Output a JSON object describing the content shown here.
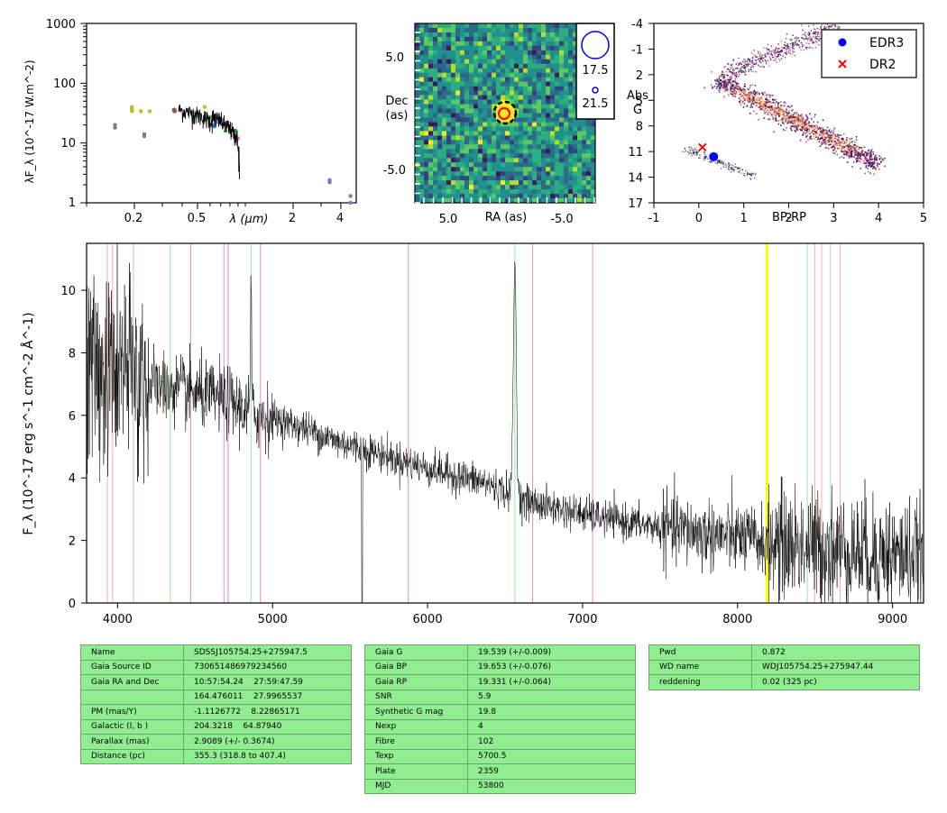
{
  "colors": {
    "sed_points": [
      "#7f7f7f",
      "#bcbd22",
      "#8c564b",
      "#9467bd",
      "#17becf",
      "#e377c2",
      "#2ca02c",
      "#1f77b4"
    ],
    "table_bg": "#90ee90",
    "edr3": "#0000ff",
    "dr2": "#ff0000",
    "cmd_cmap": [
      "#1b0b3c",
      "#5b1a6e",
      "#b5367a",
      "#f26a3d",
      "#fcae52",
      "#fdf6b6"
    ],
    "spectrum": "#000000",
    "line_pink": "#ffaaaa",
    "line_green": "#90ee90",
    "line_violet": "#dd88dd",
    "line_yellow": "#ffff00"
  },
  "sed": {
    "ylabel": "λF_λ (10^-17 W.m^-2)",
    "xlabel": "λ (μm)",
    "y_ticks": [
      "1",
      "10",
      "100",
      "1000"
    ],
    "x_ticks": [
      "0.2",
      "0.5",
      "2",
      "4"
    ]
  },
  "image_panel": {
    "xlabel": "RA (as)",
    "ylabel_line1": "Dec",
    "ylabel_line2": "(as)",
    "x_ticks": [
      "5.0",
      "-5.0"
    ],
    "y_ticks": [
      "5.0",
      "-5.0"
    ],
    "legend_values": [
      "17.5",
      "21.5"
    ]
  },
  "cmd": {
    "ylabel_line1": "Abs",
    "ylabel_line2": "G",
    "xlabel": "BP-RP",
    "y_ticks": [
      "-4",
      "-1",
      "2",
      "5",
      "8",
      "11",
      "14",
      "17"
    ],
    "x_ticks": [
      "-1",
      "0",
      "1",
      "2",
      "3",
      "4",
      "5"
    ],
    "legend": [
      "EDR3",
      "DR2"
    ]
  },
  "chart_data": [
    {
      "type": "scatter",
      "panel": "sed",
      "x_scale": "log",
      "y_scale": "log",
      "xlim": [
        0.1,
        5.0
      ],
      "ylim": [
        1,
        1000
      ],
      "series": [
        {
          "x": [
            0.151,
            0.151,
            0.231,
            0.231
          ],
          "y": [
            18,
            20,
            13,
            14
          ]
        },
        {
          "x": [
            0.193,
            0.193,
            0.193,
            0.22,
            0.25,
            0.355,
            0.36,
            0.5,
            0.555,
            0.62,
            0.75,
            0.85
          ],
          "y": [
            34,
            37,
            40,
            34,
            34,
            34,
            36,
            34,
            40,
            28,
            18,
            16
          ]
        },
        {
          "x": [
            0.355,
            0.36
          ],
          "y": [
            36,
            34
          ]
        },
        {
          "x": [
            3.4,
            3.4,
            4.6,
            4.6
          ],
          "y": [
            2.2,
            2.4,
            1.3,
            1.0
          ]
        },
        {
          "x": [
            0.48,
            0.5,
            0.6,
            0.66
          ],
          "y": [
            30,
            28,
            26,
            25
          ]
        },
        {
          "x": [
            0.44,
            0.48,
            0.62,
            0.76,
            0.9
          ],
          "y": [
            35,
            32,
            25,
            18,
            12
          ]
        },
        {
          "x": [
            0.46,
            0.62,
            0.75,
            0.87
          ],
          "y": [
            33,
            27,
            16,
            16
          ]
        },
        {
          "x": [
            0.64,
            0.64,
            0.65,
            0.65
          ],
          "y": [
            19,
            20,
            22,
            24
          ]
        },
        {
          "x": [
            0.51,
            0.64,
            0.8
          ],
          "y": [
            30,
            27,
            15
          ]
        }
      ],
      "model_spectrum_range_um": [
        0.38,
        0.92
      ]
    },
    {
      "type": "heatmap",
      "panel": "image",
      "xlim": [
        10,
        -10
      ],
      "ylim": [
        -10,
        10
      ],
      "legend_magnitudes": [
        17.5,
        21.5
      ]
    },
    {
      "type": "scatter",
      "panel": "cmd",
      "xlim": [
        -1,
        5
      ],
      "ylim": [
        17,
        -4
      ],
      "series": [
        {
          "name": "EDR3",
          "x": [
            0.33
          ],
          "y": [
            11.6
          ]
        },
        {
          "name": "DR2",
          "x": [
            0.08
          ],
          "y": [
            10.5
          ]
        }
      ]
    },
    {
      "type": "line",
      "panel": "spectrum",
      "xlim": [
        3800,
        9200
      ],
      "ylim": [
        0,
        11.5
      ],
      "y_ticks": [
        0,
        2,
        4,
        6,
        8,
        10
      ],
      "x_ticks": [
        4000,
        5000,
        6000,
        7000,
        8000,
        9000
      ],
      "ylabel": "F_λ (10^-17 erg s^-1 cm^-2 Å^-1)",
      "continuum": {
        "x": [
          3800,
          3900,
          4000,
          4100,
          4200,
          4300,
          4500,
          4700,
          4900,
          5000,
          5200,
          5400,
          5600,
          5800,
          6000,
          6200,
          6400,
          6600,
          6800,
          7000,
          7200,
          7400,
          7600,
          7800,
          8000,
          8200,
          8400,
          8600,
          8800,
          9000,
          9200
        ],
        "y": [
          7.6,
          7.3,
          7.5,
          7.3,
          7.0,
          6.9,
          6.7,
          6.5,
          6.0,
          5.9,
          5.6,
          5.2,
          4.9,
          4.6,
          4.3,
          4.05,
          3.8,
          3.3,
          3.05,
          2.85,
          2.65,
          2.5,
          2.35,
          2.2,
          2.1,
          1.9,
          1.85,
          1.75,
          1.65,
          1.55,
          1.45
        ]
      },
      "emission_lines": [
        {
          "x": 4861,
          "peak": 10.5
        },
        {
          "x": 6563,
          "peak": 10.7
        }
      ],
      "line_markers": {
        "pink": [
          3934,
          3968,
          8498,
          8542,
          8662
        ],
        "green": [
          4102,
          4340,
          4861,
          6563,
          8450,
          8600
        ],
        "violet": [
          4471,
          4686,
          4713,
          4922,
          5876,
          6678,
          7065
        ],
        "yellow": [
          8190
        ]
      }
    }
  ],
  "tables": [
    {
      "rows": [
        [
          "Name",
          "SDSSJ105754.25+275947.5"
        ],
        [
          "Gaia Source ID",
          "730651486979234560"
        ],
        [
          "Gaia RA and Dec",
          "10:57:54.24    27:59:47.59"
        ],
        [
          "",
          "164.476011    27.9965537"
        ],
        [
          "PM (mas/Y)",
          "-1.1126772    8.22865171"
        ],
        [
          "Galactic (l, b )",
          "204.3218    64.87940"
        ],
        [
          "Parallax (mas)",
          "2.9089 (+/- 0.3674)"
        ],
        [
          "Distance (pc)",
          "355.3 (318.8 to 407.4)"
        ]
      ]
    },
    {
      "rows": [
        [
          "Gaia G",
          "19.539 (+/-0.009)"
        ],
        [
          "Gaia BP",
          "19.653 (+/-0.076)"
        ],
        [
          "Gaia RP",
          "19.331 (+/-0.064)"
        ],
        [
          "SNR",
          "5.9"
        ],
        [
          "Synthetic G mag",
          "19.8"
        ],
        [
          "Nexp",
          "4"
        ],
        [
          "Fibre",
          "102"
        ],
        [
          "Texp",
          "5700.5"
        ],
        [
          "Plate",
          "2359"
        ],
        [
          "MJD",
          "53800"
        ]
      ]
    },
    {
      "rows": [
        [
          "Pwd",
          "0.872"
        ],
        [
          "WD name",
          "WDJ105754.25+275947.44"
        ],
        [
          "reddening",
          "0.02 (325 pc)"
        ]
      ]
    }
  ]
}
